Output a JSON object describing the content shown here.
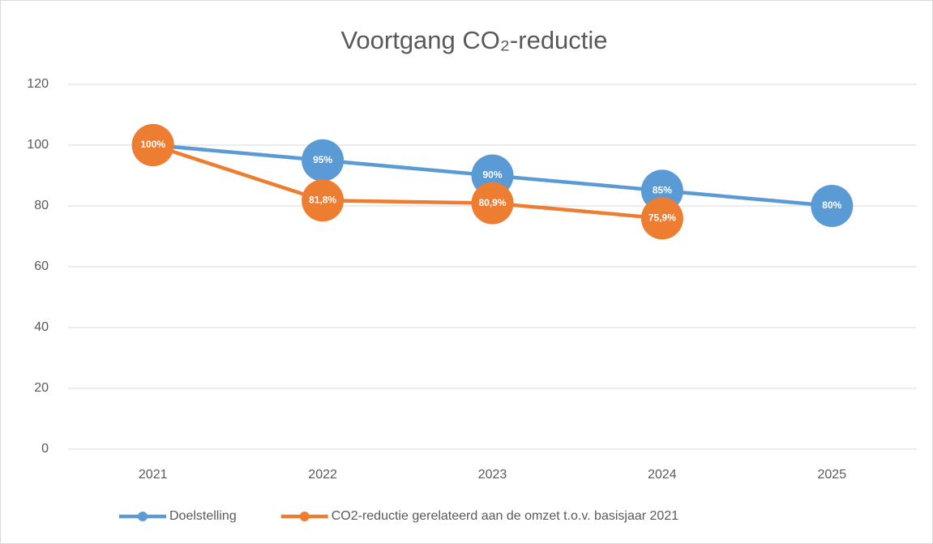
{
  "chart_data": {
    "type": "line",
    "title": "Voortgang CO₂-reductie",
    "categories": [
      "2021",
      "2022",
      "2023",
      "2024",
      "2025"
    ],
    "series": [
      {
        "name": "Doelstelling",
        "color": "#5b9bd5",
        "values": [
          100,
          95,
          90,
          85,
          80
        ],
        "value_labels": [
          null,
          "95%",
          "90%",
          "85%",
          "80%"
        ]
      },
      {
        "name": "CO2-reductie gerelateerd aan de omzet t.o.v. basisjaar 2021",
        "color": "#ed7d31",
        "values": [
          100,
          81.8,
          80.9,
          75.9,
          null
        ],
        "value_labels": [
          "100%",
          "81,8%",
          "80,9%",
          "75,9%",
          null
        ]
      }
    ],
    "ylim": [
      0,
      120
    ],
    "yticks": [
      0,
      20,
      40,
      60,
      80,
      100,
      120
    ],
    "grid": true,
    "legend": "bottom"
  }
}
